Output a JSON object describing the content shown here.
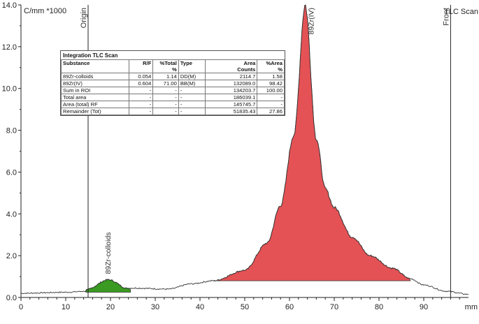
{
  "chart_data": {
    "type": "area",
    "title": "",
    "ylabel": "C/mm *1000",
    "xlabel": "mm",
    "xlim": [
      0,
      100
    ],
    "ylim": [
      0,
      14
    ],
    "xticks": [
      "0",
      "10",
      "20",
      "30",
      "40",
      "50",
      "60",
      "70",
      "80",
      "90"
    ],
    "yticks": [
      "0.0",
      "2.0",
      "4.0",
      "6.0",
      "8.0",
      "10.0",
      "12.0",
      "14.0"
    ],
    "markers": [
      {
        "label": "Origin",
        "x": 15
      },
      {
        "label": "Front",
        "x": 96
      }
    ],
    "corner_label": "TLC Scan",
    "peaks": [
      {
        "name": "89Zr-colloids",
        "x_start": 14.5,
        "x_end": 24.5,
        "apex_x": 19.5,
        "apex_y": 0.85,
        "baseline": 0.25,
        "color": "#3a9a22"
      },
      {
        "name": "89Zr(IV)",
        "x_start": 43,
        "x_end": 87,
        "apex_x": 63.5,
        "apex_y": 14.0,
        "baseline": 0.8,
        "color": "#e45255"
      }
    ],
    "trace": [
      [
        0,
        0.2
      ],
      [
        10,
        0.25
      ],
      [
        15,
        0.3
      ],
      [
        25,
        0.45
      ],
      [
        33,
        0.4
      ],
      [
        38,
        0.65
      ],
      [
        43,
        0.8
      ],
      [
        50,
        1.3
      ],
      [
        55,
        2.6
      ],
      [
        58,
        4.4
      ],
      [
        61,
        7.8
      ],
      [
        63.5,
        14.0
      ],
      [
        66,
        7.6
      ],
      [
        68,
        5.2
      ],
      [
        70,
        4.3
      ],
      [
        74,
        2.9
      ],
      [
        78,
        2.0
      ],
      [
        83,
        1.4
      ],
      [
        87,
        0.9
      ],
      [
        90,
        0.6
      ],
      [
        95,
        0.3
      ],
      [
        100,
        0.15
      ]
    ],
    "grid": false,
    "legend": "none"
  },
  "results_table": {
    "caption": "Integration TLC Scan",
    "headers": [
      "Substance",
      "R/F",
      "%Total %",
      "Type",
      "Area Counts",
      "%Area %"
    ],
    "header_top": [
      "Substance",
      "R/F",
      "%Total",
      "Type",
      "Area",
      "%Area"
    ],
    "header_bottom": [
      "",
      "",
      "%",
      "",
      "Counts",
      "%"
    ],
    "rows": [
      [
        "89Zr-colloids",
        "0.054",
        "1.14",
        "DD(M)",
        "2114.7",
        "1.58"
      ],
      [
        "89Zr(IV)",
        "0.604",
        "71.00",
        "BB(M)",
        "132089.0",
        "98.42"
      ],
      [
        "Sum in ROI",
        "-",
        "-",
        "-",
        "134203.7",
        "100.00"
      ],
      [
        "Total area",
        "-",
        "-",
        "-",
        "186039.1",
        "-"
      ],
      [
        "Area (total) RF",
        "-",
        "-",
        "-",
        "145745.7",
        "-"
      ],
      [
        "Remainder (Tot)",
        "-",
        "-",
        "-",
        "51835.43",
        "27.86"
      ]
    ]
  }
}
